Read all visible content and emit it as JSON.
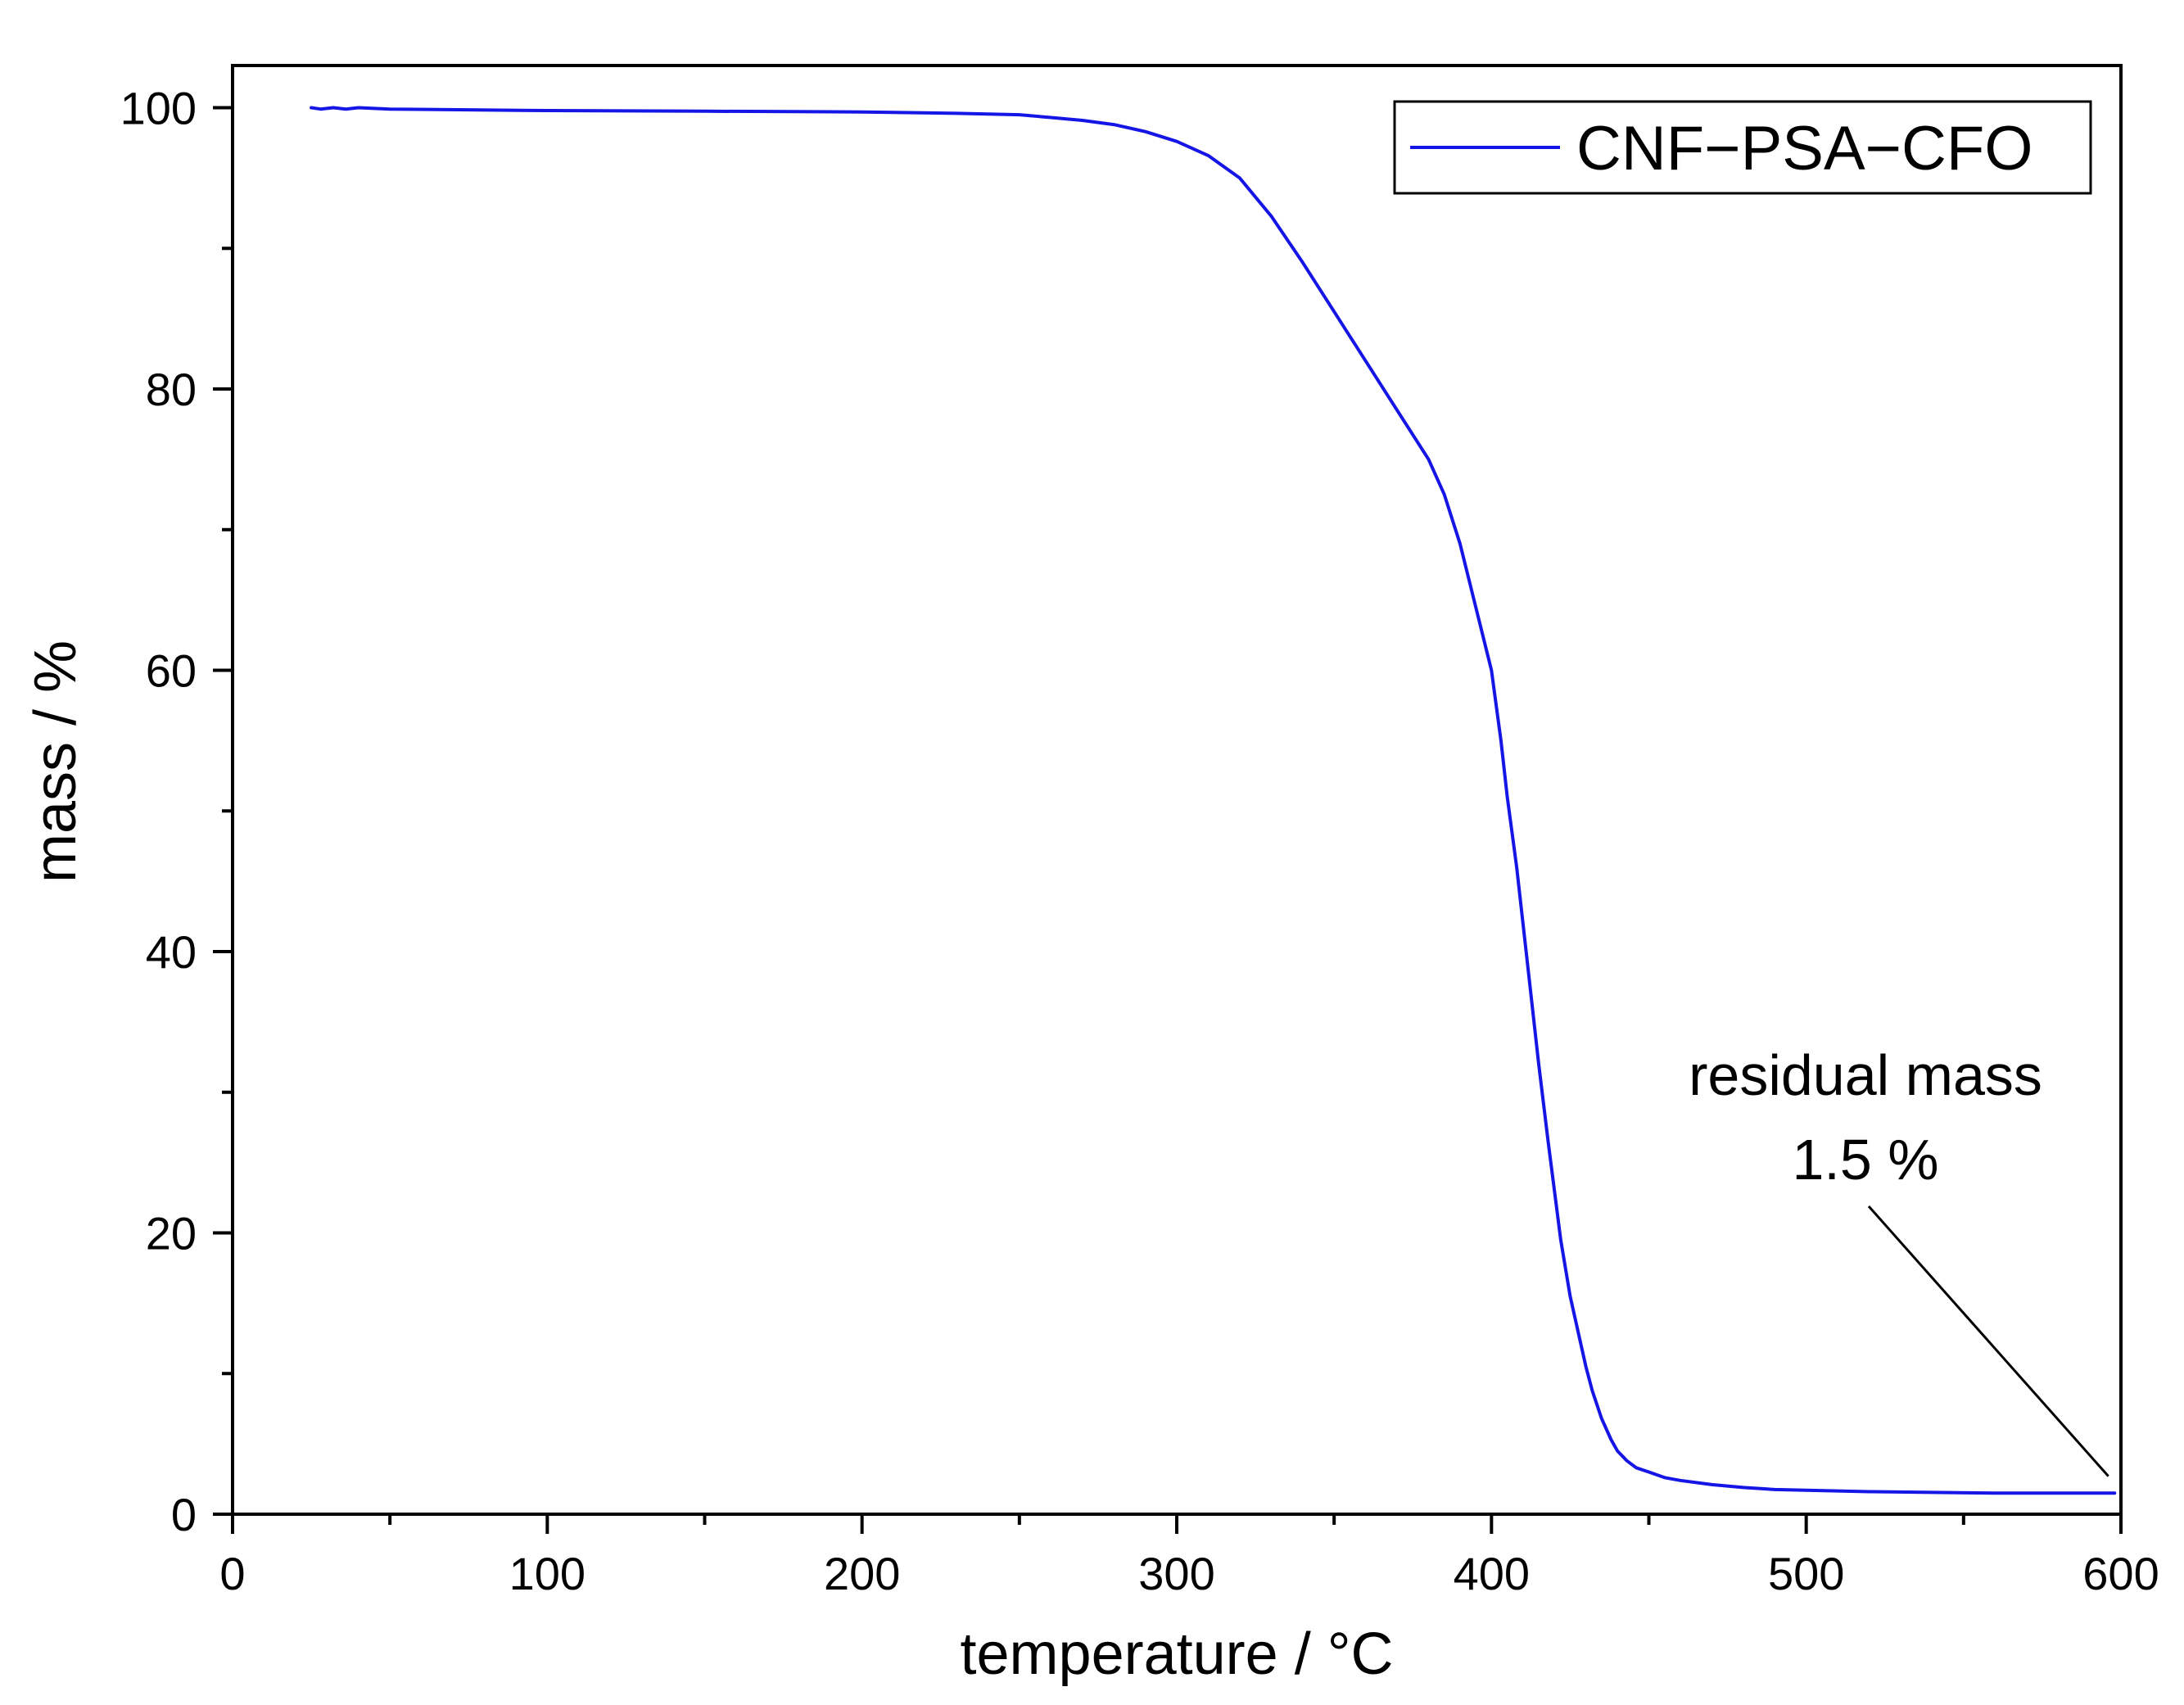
{
  "chart_data": {
    "type": "line",
    "title": "",
    "xlabel": "temperature / °C",
    "ylabel": "mass / %",
    "xlim": [
      0,
      600
    ],
    "ylim": [
      0,
      103
    ],
    "x_ticks": [
      0,
      100,
      200,
      300,
      400,
      500,
      600
    ],
    "y_ticks": [
      0,
      20,
      40,
      60,
      80,
      100
    ],
    "x_minor_ticks": [
      50,
      150,
      250,
      350,
      450,
      550
    ],
    "y_minor_ticks": [
      10,
      30,
      50,
      70,
      90
    ],
    "grid": false,
    "legend": {
      "position": "top-right"
    },
    "series": [
      {
        "name": "CNF−PSA−CFO",
        "color": "#1515e6",
        "x": [
          25,
          28,
          32,
          36,
          40,
          50,
          75,
          100,
          150,
          200,
          230,
          250,
          260,
          270,
          280,
          290,
          300,
          310,
          320,
          330,
          340,
          350,
          360,
          370,
          380,
          385,
          390,
          395,
          400,
          403,
          405,
          408,
          410,
          412,
          415,
          418,
          420,
          422,
          425,
          428,
          430,
          432,
          435,
          438,
          440,
          443,
          446,
          450,
          455,
          460,
          470,
          480,
          490,
          500,
          520,
          540,
          560,
          580,
          598
        ],
        "values": [
          100.0,
          99.9,
          100.0,
          99.9,
          100.0,
          99.9,
          99.85,
          99.8,
          99.75,
          99.7,
          99.6,
          99.5,
          99.3,
          99.1,
          98.8,
          98.3,
          97.6,
          96.6,
          95.0,
          92.3,
          89.0,
          85.5,
          82.0,
          78.5,
          75.0,
          72.5,
          69.0,
          64.5,
          60.0,
          55.0,
          51.0,
          46.0,
          42.0,
          38.0,
          32.0,
          26.5,
          23.0,
          19.5,
          15.5,
          12.5,
          10.5,
          8.8,
          6.8,
          5.3,
          4.5,
          3.8,
          3.3,
          3.0,
          2.6,
          2.4,
          2.1,
          1.9,
          1.75,
          1.7,
          1.6,
          1.55,
          1.5,
          1.5,
          1.5
        ]
      }
    ],
    "annotations": [
      {
        "lines": [
          "residual mass",
          "1.5 %"
        ],
        "target": {
          "x": 596,
          "y": 2.7
        }
      }
    ]
  }
}
